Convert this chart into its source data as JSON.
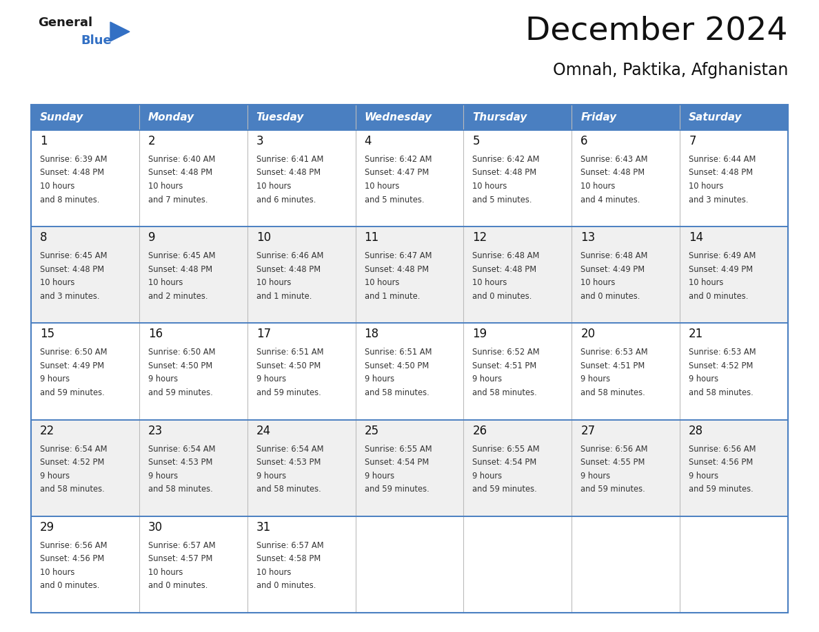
{
  "title": "December 2024",
  "subtitle": "Omnah, Paktika, Afghanistan",
  "header_color": "#4a7fc1",
  "header_text_color": "#FFFFFF",
  "cell_bg_even": "#FFFFFF",
  "cell_bg_odd": "#F0F0F0",
  "border_color": "#4a7fc1",
  "text_color": "#333333",
  "day_headers": [
    "Sunday",
    "Monday",
    "Tuesday",
    "Wednesday",
    "Thursday",
    "Friday",
    "Saturday"
  ],
  "calendar": [
    [
      {
        "day": 1,
        "sunrise": "6:39 AM",
        "sunset": "4:48 PM",
        "daylight": "10 hours\nand 8 minutes."
      },
      {
        "day": 2,
        "sunrise": "6:40 AM",
        "sunset": "4:48 PM",
        "daylight": "10 hours\nand 7 minutes."
      },
      {
        "day": 3,
        "sunrise": "6:41 AM",
        "sunset": "4:48 PM",
        "daylight": "10 hours\nand 6 minutes."
      },
      {
        "day": 4,
        "sunrise": "6:42 AM",
        "sunset": "4:47 PM",
        "daylight": "10 hours\nand 5 minutes."
      },
      {
        "day": 5,
        "sunrise": "6:42 AM",
        "sunset": "4:48 PM",
        "daylight": "10 hours\nand 5 minutes."
      },
      {
        "day": 6,
        "sunrise": "6:43 AM",
        "sunset": "4:48 PM",
        "daylight": "10 hours\nand 4 minutes."
      },
      {
        "day": 7,
        "sunrise": "6:44 AM",
        "sunset": "4:48 PM",
        "daylight": "10 hours\nand 3 minutes."
      }
    ],
    [
      {
        "day": 8,
        "sunrise": "6:45 AM",
        "sunset": "4:48 PM",
        "daylight": "10 hours\nand 3 minutes."
      },
      {
        "day": 9,
        "sunrise": "6:45 AM",
        "sunset": "4:48 PM",
        "daylight": "10 hours\nand 2 minutes."
      },
      {
        "day": 10,
        "sunrise": "6:46 AM",
        "sunset": "4:48 PM",
        "daylight": "10 hours\nand 1 minute."
      },
      {
        "day": 11,
        "sunrise": "6:47 AM",
        "sunset": "4:48 PM",
        "daylight": "10 hours\nand 1 minute."
      },
      {
        "day": 12,
        "sunrise": "6:48 AM",
        "sunset": "4:48 PM",
        "daylight": "10 hours\nand 0 minutes."
      },
      {
        "day": 13,
        "sunrise": "6:48 AM",
        "sunset": "4:49 PM",
        "daylight": "10 hours\nand 0 minutes."
      },
      {
        "day": 14,
        "sunrise": "6:49 AM",
        "sunset": "4:49 PM",
        "daylight": "10 hours\nand 0 minutes."
      }
    ],
    [
      {
        "day": 15,
        "sunrise": "6:50 AM",
        "sunset": "4:49 PM",
        "daylight": "9 hours\nand 59 minutes."
      },
      {
        "day": 16,
        "sunrise": "6:50 AM",
        "sunset": "4:50 PM",
        "daylight": "9 hours\nand 59 minutes."
      },
      {
        "day": 17,
        "sunrise": "6:51 AM",
        "sunset": "4:50 PM",
        "daylight": "9 hours\nand 59 minutes."
      },
      {
        "day": 18,
        "sunrise": "6:51 AM",
        "sunset": "4:50 PM",
        "daylight": "9 hours\nand 58 minutes."
      },
      {
        "day": 19,
        "sunrise": "6:52 AM",
        "sunset": "4:51 PM",
        "daylight": "9 hours\nand 58 minutes."
      },
      {
        "day": 20,
        "sunrise": "6:53 AM",
        "sunset": "4:51 PM",
        "daylight": "9 hours\nand 58 minutes."
      },
      {
        "day": 21,
        "sunrise": "6:53 AM",
        "sunset": "4:52 PM",
        "daylight": "9 hours\nand 58 minutes."
      }
    ],
    [
      {
        "day": 22,
        "sunrise": "6:54 AM",
        "sunset": "4:52 PM",
        "daylight": "9 hours\nand 58 minutes."
      },
      {
        "day": 23,
        "sunrise": "6:54 AM",
        "sunset": "4:53 PM",
        "daylight": "9 hours\nand 58 minutes."
      },
      {
        "day": 24,
        "sunrise": "6:54 AM",
        "sunset": "4:53 PM",
        "daylight": "9 hours\nand 58 minutes."
      },
      {
        "day": 25,
        "sunrise": "6:55 AM",
        "sunset": "4:54 PM",
        "daylight": "9 hours\nand 59 minutes."
      },
      {
        "day": 26,
        "sunrise": "6:55 AM",
        "sunset": "4:54 PM",
        "daylight": "9 hours\nand 59 minutes."
      },
      {
        "day": 27,
        "sunrise": "6:56 AM",
        "sunset": "4:55 PM",
        "daylight": "9 hours\nand 59 minutes."
      },
      {
        "day": 28,
        "sunrise": "6:56 AM",
        "sunset": "4:56 PM",
        "daylight": "9 hours\nand 59 minutes."
      }
    ],
    [
      {
        "day": 29,
        "sunrise": "6:56 AM",
        "sunset": "4:56 PM",
        "daylight": "10 hours\nand 0 minutes."
      },
      {
        "day": 30,
        "sunrise": "6:57 AM",
        "sunset": "4:57 PM",
        "daylight": "10 hours\nand 0 minutes."
      },
      {
        "day": 31,
        "sunrise": "6:57 AM",
        "sunset": "4:58 PM",
        "daylight": "10 hours\nand 0 minutes."
      },
      null,
      null,
      null,
      null
    ]
  ],
  "fig_width": 11.88,
  "fig_height": 9.18,
  "dpi": 100
}
